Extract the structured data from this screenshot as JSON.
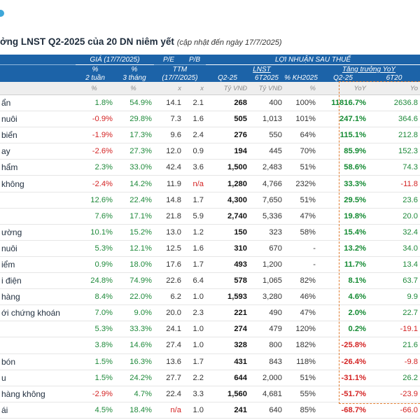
{
  "title": "ởng LNST Q2-2025 của 20 DN niêm yết",
  "subtitle": "(cập nhật đến ngày 17/7/2025)",
  "headers": {
    "gia": "GIÁ (17/7/2025)",
    "pe": "P/E",
    "pb": "P/B",
    "lnst_group": "LỢI NHUẬN SAU THUẾ",
    "pct": "%",
    "two_weeks": "2 tuần",
    "three_months": "3 tháng",
    "ttm": "TTM",
    "ttm_date": "(17/7/2025)",
    "lnst": "LNST",
    "growth": "Tăng trưởng YoY",
    "q2": "Q2-25",
    "h6": "6T2025",
    "kh": "% KH2025",
    "q2g": "Q2-25",
    "h6g": "6T20",
    "unit_pct1": "%",
    "unit_pct2": "%",
    "unit_x1": "x",
    "unit_x2": "x",
    "unit_vnd1": "Tỷ VNĐ",
    "unit_vnd2": "Tỷ VNĐ",
    "unit_pct3": "%",
    "unit_yoy1": "YoY",
    "unit_yoy2": "Yo"
  },
  "rows": [
    {
      "name": "ẩn",
      "w2": "1.8%",
      "m3": "54.9%",
      "pe": "14.1",
      "pb": "2.1",
      "q2": "268",
      "h6": "400",
      "kh": "100%",
      "q2g": "11816.7%",
      "h6g": "2636.8"
    },
    {
      "name": "nuôi",
      "w2": "-0.9%",
      "m3": "29.8%",
      "pe": "7.3",
      "pb": "1.6",
      "q2": "505",
      "h6": "1,013",
      "kh": "101%",
      "q2g": "247.1%",
      "h6g": "364.6"
    },
    {
      "name": "biển",
      "w2": "-1.9%",
      "m3": "17.3%",
      "pe": "9.6",
      "pb": "2.4",
      "q2": "276",
      "h6": "550",
      "kh": "64%",
      "q2g": "115.1%",
      "h6g": "212.8"
    },
    {
      "name": "ay",
      "w2": "-2.6%",
      "m3": "27.3%",
      "pe": "12.0",
      "pb": "0.9",
      "q2": "194",
      "h6": "445",
      "kh": "70%",
      "q2g": "85.9%",
      "h6g": "152.3"
    },
    {
      "name": "hẩm",
      "w2": "2.3%",
      "m3": "33.0%",
      "pe": "42.4",
      "pb": "3.6",
      "q2": "1,500",
      "h6": "2,483",
      "kh": "51%",
      "q2g": "58.6%",
      "h6g": "74.3"
    },
    {
      "name": "không",
      "w2": "-2.4%",
      "m3": "14.2%",
      "pe": "11.9",
      "pb": "n/a",
      "q2": "1,280",
      "h6": "4,766",
      "kh": "232%",
      "q2g": "33.3%",
      "h6g": "-11.8"
    },
    {
      "name": "",
      "w2": "12.6%",
      "m3": "22.4%",
      "pe": "14.8",
      "pb": "1.7",
      "q2": "4,300",
      "h6": "7,650",
      "kh": "51%",
      "q2g": "29.5%",
      "h6g": "23.6"
    },
    {
      "name": "",
      "w2": "7.6%",
      "m3": "17.1%",
      "pe": "21.8",
      "pb": "5.9",
      "q2": "2,740",
      "h6": "5,336",
      "kh": "47%",
      "q2g": "19.8%",
      "h6g": "20.0"
    },
    {
      "name": "ường",
      "w2": "10.1%",
      "m3": "15.2%",
      "pe": "13.0",
      "pb": "1.2",
      "q2": "150",
      "h6": "323",
      "kh": "58%",
      "q2g": "15.4%",
      "h6g": "32.4"
    },
    {
      "name": "nuôi",
      "w2": "5.3%",
      "m3": "12.1%",
      "pe": "12.5",
      "pb": "1.6",
      "q2": "310",
      "h6": "670",
      "kh": "-",
      "q2g": "13.2%",
      "h6g": "34.0"
    },
    {
      "name": "iểm",
      "w2": "0.9%",
      "m3": "18.0%",
      "pe": "17.6",
      "pb": "1.7",
      "q2": "493",
      "h6": "1,200",
      "kh": "-",
      "q2g": "11.7%",
      "h6g": "13.4"
    },
    {
      "name": "i điện",
      "w2": "24.8%",
      "m3": "74.9%",
      "pe": "22.6",
      "pb": "6.4",
      "q2": "578",
      "h6": "1,065",
      "kh": "82%",
      "q2g": "8.1%",
      "h6g": "63.7"
    },
    {
      "name": "hàng",
      "w2": "8.4%",
      "m3": "22.0%",
      "pe": "6.2",
      "pb": "1.0",
      "q2": "1,593",
      "h6": "3,280",
      "kh": "46%",
      "q2g": "4.6%",
      "h6g": "9.9"
    },
    {
      "name": "ới chứng khoán",
      "w2": "7.0%",
      "m3": "9.0%",
      "pe": "20.0",
      "pb": "2.3",
      "q2": "221",
      "h6": "490",
      "kh": "47%",
      "q2g": "2.0%",
      "h6g": "22.7"
    },
    {
      "name": "",
      "w2": "5.3%",
      "m3": "33.3%",
      "pe": "24.1",
      "pb": "1.0",
      "q2": "274",
      "h6": "479",
      "kh": "120%",
      "q2g": "0.2%",
      "h6g": "-19.1"
    },
    {
      "name": "",
      "w2": "3.8%",
      "m3": "14.6%",
      "pe": "27.4",
      "pb": "1.0",
      "q2": "328",
      "h6": "800",
      "kh": "182%",
      "q2g": "-25.8%",
      "h6g": "21.6"
    },
    {
      "name": "bón",
      "w2": "1.5%",
      "m3": "16.3%",
      "pe": "13.6",
      "pb": "1.7",
      "q2": "431",
      "h6": "843",
      "kh": "118%",
      "q2g": "-26.4%",
      "h6g": "-9.8"
    },
    {
      "name": "u",
      "w2": "1.5%",
      "m3": "24.2%",
      "pe": "27.7",
      "pb": "2.2",
      "q2": "644",
      "h6": "2,000",
      "kh": "51%",
      "q2g": "-31.1%",
      "h6g": "26.2"
    },
    {
      "name": "hàng không",
      "w2": "-2.9%",
      "m3": "4.7%",
      "pe": "22.4",
      "pb": "3.3",
      "q2": "1,560",
      "h6": "4,681",
      "kh": "55%",
      "q2g": "-51.7%",
      "h6g": "-23.9"
    },
    {
      "name": "ái",
      "w2": "4.5%",
      "m3": "18.4%",
      "pe": "n/a",
      "pb": "1.0",
      "q2": "241",
      "h6": "640",
      "kh": "85%",
      "q2g": "-68.7%",
      "h6g": "-66.0"
    }
  ]
}
